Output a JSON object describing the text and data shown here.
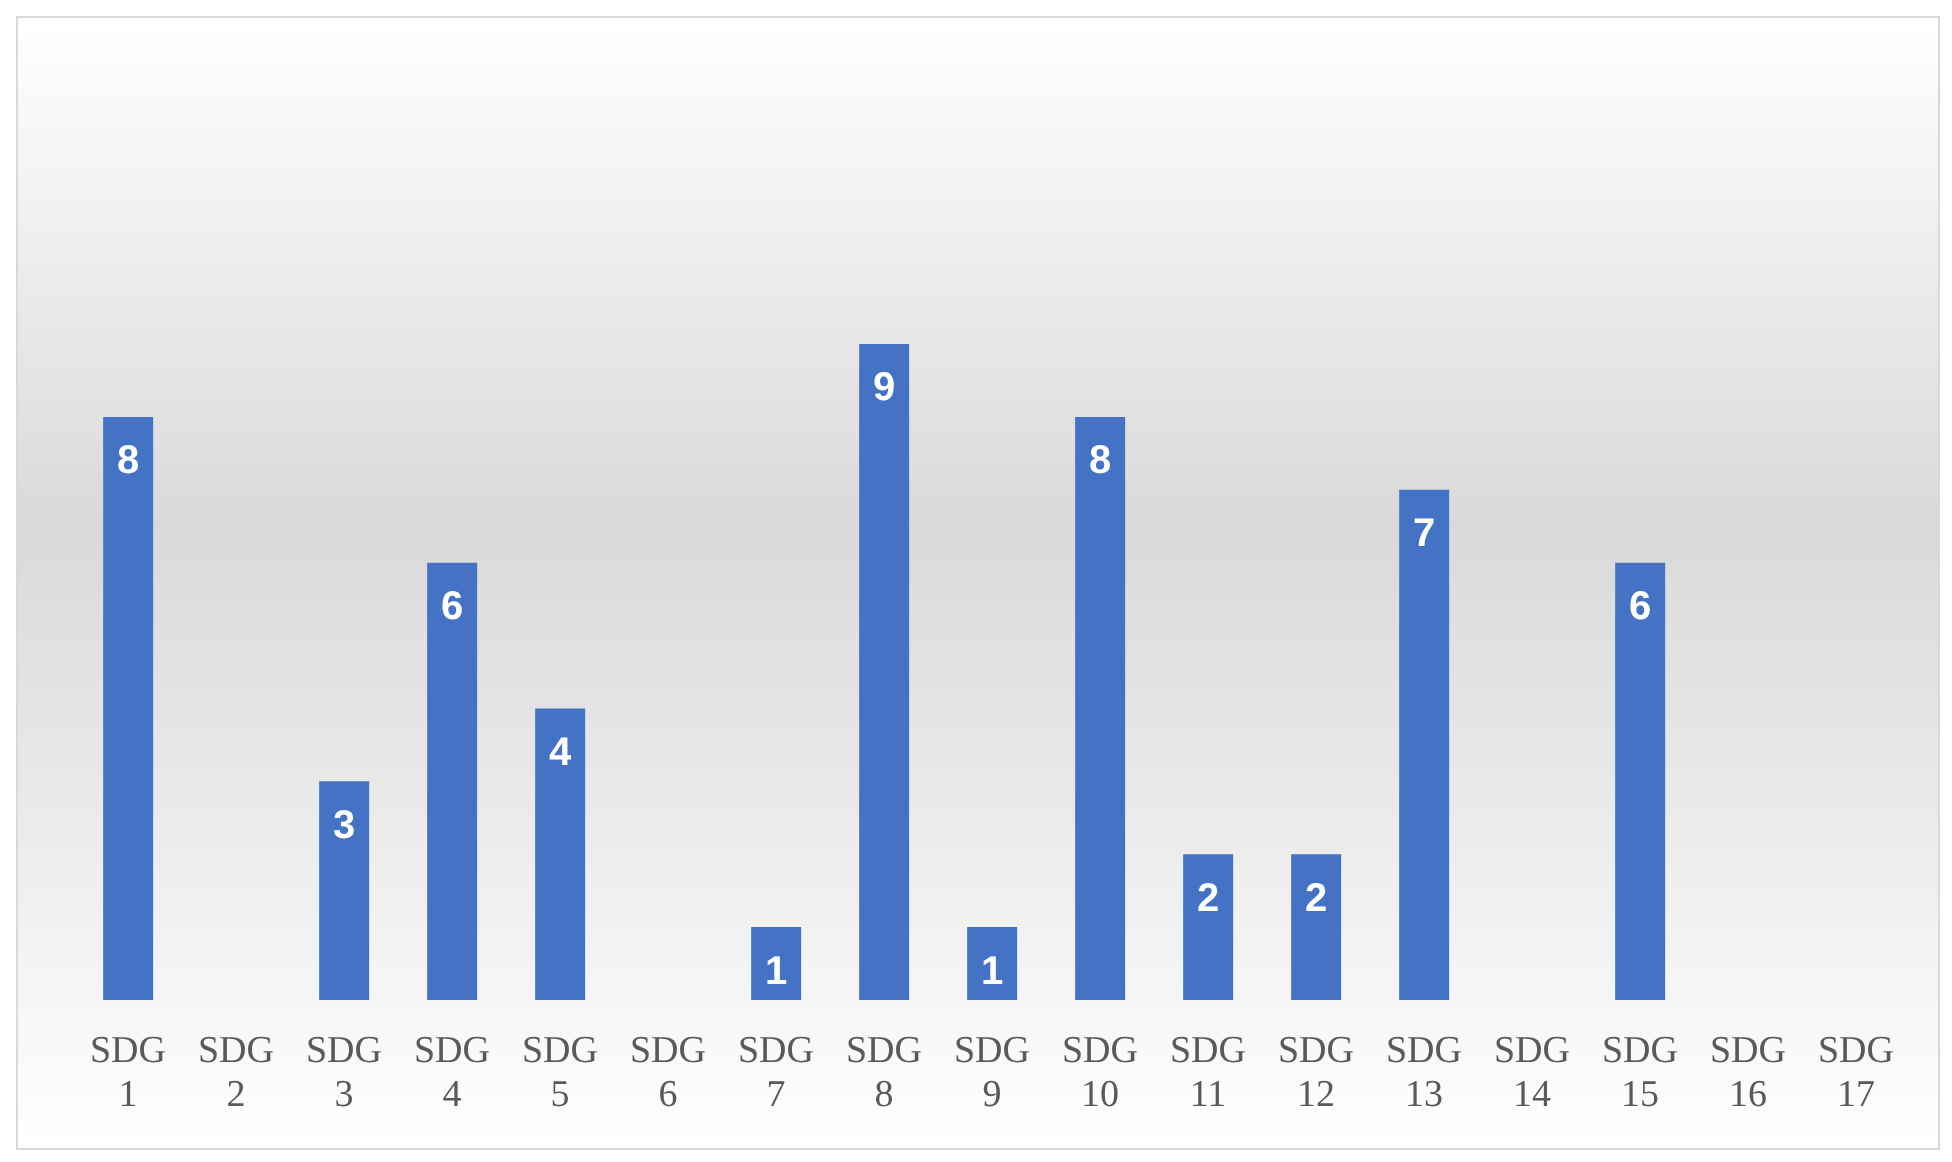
{
  "chart_data": {
    "type": "bar",
    "categories": [
      "SDG 1",
      "SDG 2",
      "SDG 3",
      "SDG 4",
      "SDG 5",
      "SDG 6",
      "SDG 7",
      "SDG 8",
      "SDG 9",
      "SDG 10",
      "SDG 11",
      "SDG 12",
      "SDG 13",
      "SDG 14",
      "SDG 15",
      "SDG 16",
      "SDG 17"
    ],
    "values": [
      8,
      null,
      3,
      6,
      4,
      null,
      1,
      9,
      1,
      8,
      2,
      2,
      7,
      null,
      6,
      null,
      null
    ],
    "color": "#4472c4",
    "data_labels": true,
    "tick_labels": "x"
  }
}
